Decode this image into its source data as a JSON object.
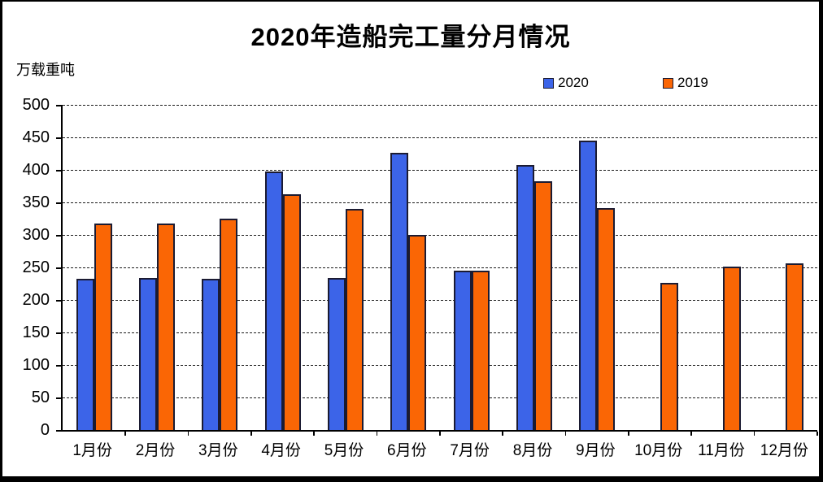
{
  "chart_data": {
    "type": "bar",
    "title": "2020年造船完工量分月情况",
    "ylabel": "万载重吨",
    "categories": [
      "1月份",
      "2月份",
      "3月份",
      "4月份",
      "5月份",
      "6月份",
      "7月份",
      "8月份",
      "9月份",
      "10月份",
      "11月份",
      "12月份"
    ],
    "series": [
      {
        "name": "2020",
        "color": "#3c64e8",
        "values": [
          232,
          234,
          232,
          398,
          234,
          426,
          245,
          407,
          445,
          null,
          null,
          null
        ]
      },
      {
        "name": "2019",
        "color": "#fa6605",
        "values": [
          317,
          317,
          325,
          362,
          340,
          300,
          245,
          383,
          341,
          226,
          251,
          256
        ]
      }
    ],
    "ylim": [
      0,
      500
    ],
    "ytick_step": 50,
    "grid": "horizontal-dashed",
    "legend_position": "top",
    "bar_border_color": "#1b1b32"
  }
}
